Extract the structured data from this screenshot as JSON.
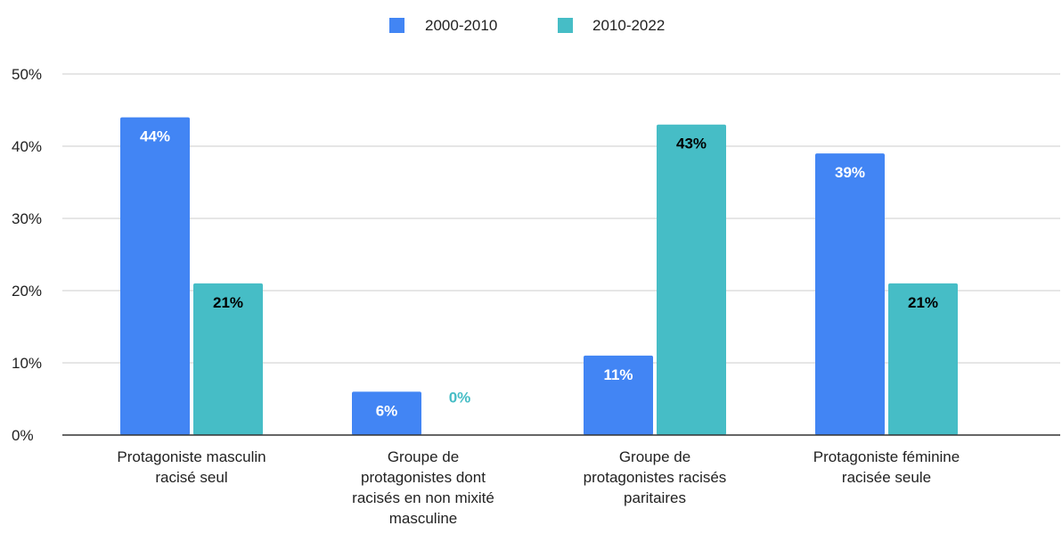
{
  "chart_data": {
    "type": "bar",
    "title": "",
    "xlabel": "",
    "ylabel": "",
    "categories": [
      "Protagoniste masculin racisé seul",
      "Groupe de protagonistes dont racisés en non mixité masculine",
      "Groupe de protagonistes racisés paritaires",
      "Protagoniste féminine racisée seule"
    ],
    "category_lines": [
      [
        "Protagoniste masculin",
        "racisé seul"
      ],
      [
        "Groupe de",
        "protagonistes dont",
        "racisés en non mixité",
        "masculine"
      ],
      [
        "Groupe de",
        "protagonistes racisés",
        "paritaires"
      ],
      [
        "Protagoniste féminine",
        "racisée seule"
      ]
    ],
    "series": [
      {
        "name": "2000-2010",
        "color": "#4285F4",
        "values": [
          44,
          6,
          11,
          39
        ],
        "labels": [
          "44%",
          "6%",
          "11%",
          "39%"
        ],
        "label_color": "#ffffff"
      },
      {
        "name": "2010-2022",
        "color": "#46BDC6",
        "values": [
          21,
          0,
          43,
          21
        ],
        "labels": [
          "21%",
          "0%",
          "43%",
          "21%"
        ],
        "label_color": "#000000"
      }
    ],
    "ylim": [
      0,
      50
    ],
    "yticks": [
      0,
      10,
      20,
      30,
      40,
      50
    ],
    "ytick_labels": [
      "0%",
      "10%",
      "20%",
      "30%",
      "40%",
      "50%"
    ],
    "grid": true,
    "legend_position": "top-center",
    "colors": {
      "grid": "#cccccc",
      "axis": "#333333",
      "zero_value_label": "#46BDC6"
    }
  }
}
